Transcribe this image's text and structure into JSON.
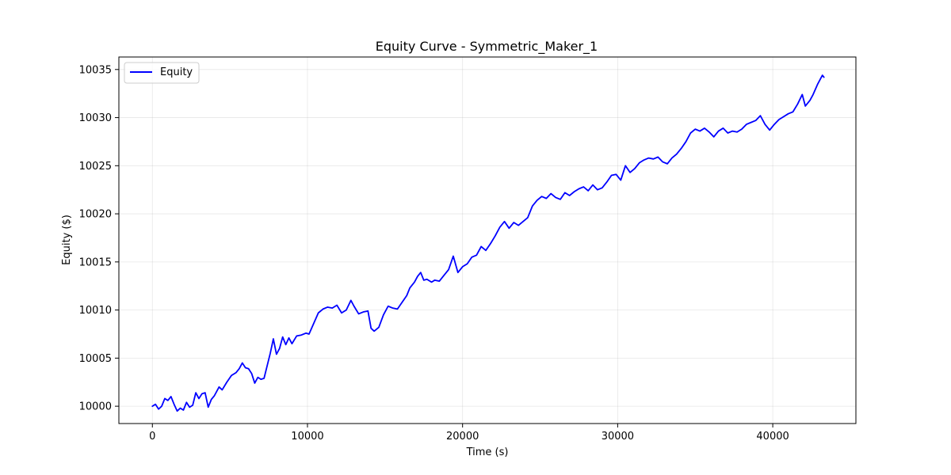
{
  "chart_data": {
    "type": "line",
    "title": "Equity Curve - Symmetric_Maker_1",
    "xlabel": "Time (s)",
    "ylabel": "Equity ($)",
    "xlim": [
      -2160,
      45360
    ],
    "ylim": [
      9998.2,
      10036.3
    ],
    "xticks": [
      0,
      10000,
      20000,
      30000,
      40000
    ],
    "xtick_labels": [
      "0",
      "10000",
      "20000",
      "30000",
      "40000"
    ],
    "yticks": [
      10000,
      10005,
      10010,
      10015,
      10020,
      10025,
      10030,
      10035
    ],
    "ytick_labels": [
      "10000",
      "10005",
      "10010",
      "10015",
      "10020",
      "10025",
      "10030",
      "10035"
    ],
    "grid": true,
    "legend": "upper left",
    "series": [
      {
        "name": "Equity",
        "color": "#0000ff",
        "points": [
          [
            0,
            10000.0
          ],
          [
            200,
            10000.2
          ],
          [
            400,
            9999.7
          ],
          [
            600,
            10000.0
          ],
          [
            800,
            10000.8
          ],
          [
            1000,
            10000.6
          ],
          [
            1200,
            10001.0
          ],
          [
            1400,
            10000.2
          ],
          [
            1600,
            9999.5
          ],
          [
            1800,
            9999.8
          ],
          [
            2000,
            9999.6
          ],
          [
            2200,
            10000.4
          ],
          [
            2400,
            9999.9
          ],
          [
            2600,
            10000.1
          ],
          [
            2800,
            10001.4
          ],
          [
            3000,
            10000.8
          ],
          [
            3200,
            10001.3
          ],
          [
            3400,
            10001.4
          ],
          [
            3600,
            9999.9
          ],
          [
            3800,
            10000.7
          ],
          [
            4000,
            10001.1
          ],
          [
            4300,
            10002.0
          ],
          [
            4500,
            10001.7
          ],
          [
            4800,
            10002.5
          ],
          [
            5100,
            10003.2
          ],
          [
            5400,
            10003.5
          ],
          [
            5600,
            10003.9
          ],
          [
            5800,
            10004.5
          ],
          [
            6000,
            10004.0
          ],
          [
            6200,
            10003.9
          ],
          [
            6400,
            10003.4
          ],
          [
            6600,
            10002.4
          ],
          [
            6800,
            10003.0
          ],
          [
            7000,
            10002.8
          ],
          [
            7200,
            10002.9
          ],
          [
            7400,
            10004.2
          ],
          [
            7600,
            10005.5
          ],
          [
            7800,
            10007.0
          ],
          [
            8000,
            10005.4
          ],
          [
            8200,
            10006.0
          ],
          [
            8400,
            10007.2
          ],
          [
            8600,
            10006.4
          ],
          [
            8800,
            10007.1
          ],
          [
            9000,
            10006.5
          ],
          [
            9300,
            10007.3
          ],
          [
            9600,
            10007.4
          ],
          [
            9900,
            10007.6
          ],
          [
            10100,
            10007.5
          ],
          [
            10400,
            10008.6
          ],
          [
            10700,
            10009.7
          ],
          [
            11000,
            10010.1
          ],
          [
            11300,
            10010.3
          ],
          [
            11600,
            10010.2
          ],
          [
            11900,
            10010.5
          ],
          [
            12200,
            10009.7
          ],
          [
            12500,
            10010.0
          ],
          [
            12800,
            10011.0
          ],
          [
            13000,
            10010.4
          ],
          [
            13300,
            10009.6
          ],
          [
            13600,
            10009.8
          ],
          [
            13900,
            10009.9
          ],
          [
            14100,
            10008.1
          ],
          [
            14300,
            10007.8
          ],
          [
            14600,
            10008.2
          ],
          [
            14900,
            10009.5
          ],
          [
            15200,
            10010.4
          ],
          [
            15500,
            10010.2
          ],
          [
            15800,
            10010.1
          ],
          [
            16100,
            10010.8
          ],
          [
            16400,
            10011.5
          ],
          [
            16600,
            10012.3
          ],
          [
            16900,
            10012.9
          ],
          [
            17100,
            10013.5
          ],
          [
            17300,
            10013.9
          ],
          [
            17500,
            10013.1
          ],
          [
            17700,
            10013.2
          ],
          [
            18000,
            10012.9
          ],
          [
            18200,
            10013.1
          ],
          [
            18500,
            10013.0
          ],
          [
            18800,
            10013.6
          ],
          [
            19100,
            10014.2
          ],
          [
            19400,
            10015.6
          ],
          [
            19700,
            10013.9
          ],
          [
            20000,
            10014.5
          ],
          [
            20300,
            10014.8
          ],
          [
            20600,
            10015.5
          ],
          [
            20900,
            10015.7
          ],
          [
            21200,
            10016.6
          ],
          [
            21500,
            10016.2
          ],
          [
            21800,
            10016.9
          ],
          [
            22100,
            10017.7
          ],
          [
            22400,
            10018.6
          ],
          [
            22700,
            10019.2
          ],
          [
            23000,
            10018.5
          ],
          [
            23300,
            10019.1
          ],
          [
            23600,
            10018.8
          ],
          [
            23900,
            10019.2
          ],
          [
            24200,
            10019.6
          ],
          [
            24500,
            10020.8
          ],
          [
            24800,
            10021.4
          ],
          [
            25100,
            10021.8
          ],
          [
            25400,
            10021.6
          ],
          [
            25700,
            10022.1
          ],
          [
            26000,
            10021.7
          ],
          [
            26300,
            10021.5
          ],
          [
            26600,
            10022.2
          ],
          [
            26900,
            10021.9
          ],
          [
            27200,
            10022.3
          ],
          [
            27500,
            10022.6
          ],
          [
            27800,
            10022.8
          ],
          [
            28100,
            10022.4
          ],
          [
            28400,
            10023.0
          ],
          [
            28700,
            10022.5
          ],
          [
            29000,
            10022.7
          ],
          [
            29300,
            10023.3
          ],
          [
            29600,
            10024.0
          ],
          [
            29900,
            10024.1
          ],
          [
            30200,
            10023.5
          ],
          [
            30500,
            10025.0
          ],
          [
            30800,
            10024.3
          ],
          [
            31100,
            10024.7
          ],
          [
            31400,
            10025.3
          ],
          [
            31700,
            10025.6
          ],
          [
            32000,
            10025.8
          ],
          [
            32300,
            10025.7
          ],
          [
            32600,
            10025.9
          ],
          [
            32900,
            10025.4
          ],
          [
            33200,
            10025.2
          ],
          [
            33500,
            10025.8
          ],
          [
            33800,
            10026.2
          ],
          [
            34100,
            10026.8
          ],
          [
            34400,
            10027.5
          ],
          [
            34700,
            10028.4
          ],
          [
            35000,
            10028.8
          ],
          [
            35300,
            10028.6
          ],
          [
            35600,
            10028.9
          ],
          [
            35900,
            10028.5
          ],
          [
            36200,
            10028.0
          ],
          [
            36500,
            10028.6
          ],
          [
            36800,
            10028.9
          ],
          [
            37100,
            10028.4
          ],
          [
            37400,
            10028.6
          ],
          [
            37700,
            10028.5
          ],
          [
            38000,
            10028.8
          ],
          [
            38300,
            10029.3
          ],
          [
            38600,
            10029.5
          ],
          [
            38900,
            10029.7
          ],
          [
            39200,
            10030.2
          ],
          [
            39500,
            10029.3
          ],
          [
            39800,
            10028.7
          ],
          [
            40100,
            10029.3
          ],
          [
            40400,
            10029.8
          ],
          [
            40700,
            10030.1
          ],
          [
            41000,
            10030.4
          ],
          [
            41300,
            10030.6
          ],
          [
            41600,
            10031.4
          ],
          [
            41900,
            10032.4
          ],
          [
            42100,
            10031.2
          ],
          [
            42400,
            10031.8
          ],
          [
            42600,
            10032.4
          ],
          [
            42900,
            10033.5
          ],
          [
            43100,
            10034.1
          ],
          [
            43200,
            10034.4
          ],
          [
            43300,
            10034.2
          ]
        ]
      }
    ]
  }
}
